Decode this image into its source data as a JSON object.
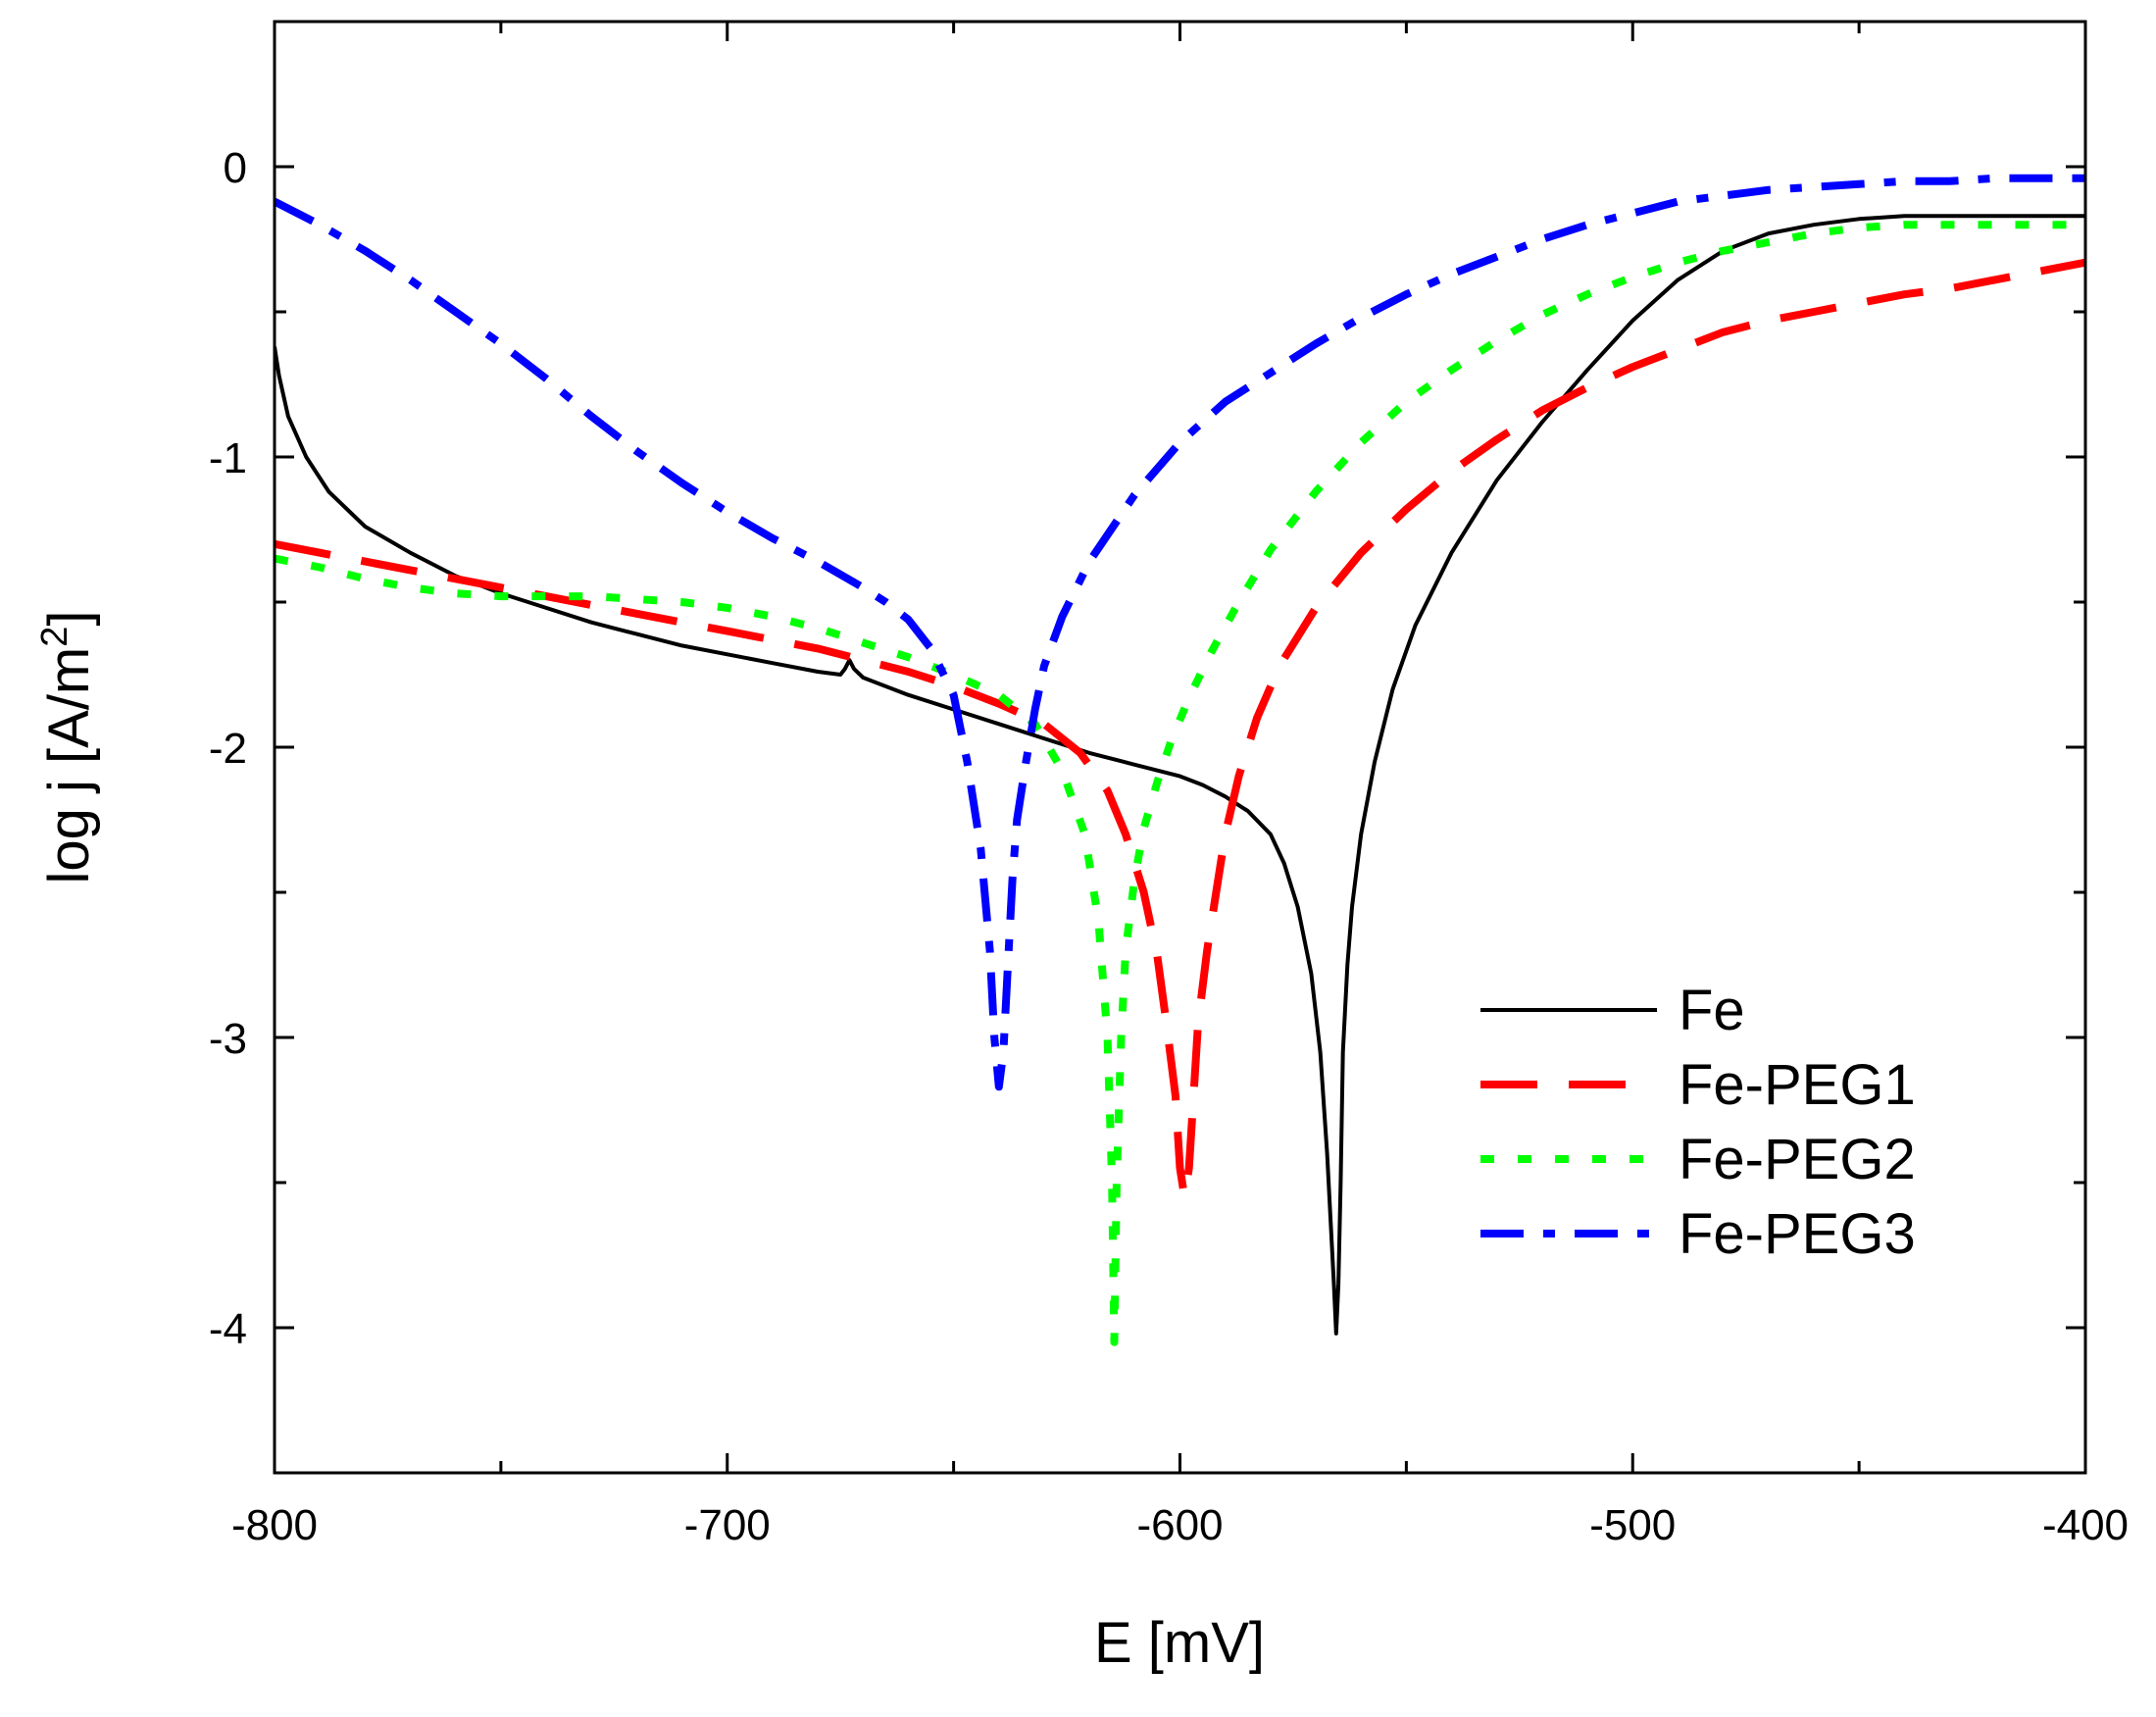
{
  "chart_data": {
    "type": "line",
    "title": "",
    "xlabel": "E [mV]",
    "ylabel": "log j [A/m",
    "ylabel_sup": "2",
    "ylabel_close": "]",
    "xlim": [
      -800,
      -400
    ],
    "ylim": [
      -4.5,
      0.5
    ],
    "xticks": [
      -800,
      -700,
      -600,
      -500,
      -400
    ],
    "xtick_labels": [
      "-800",
      "-700",
      "-600",
      "-500",
      "-400"
    ],
    "yticks": [
      0,
      -1,
      -2,
      -3,
      -4
    ],
    "ytick_labels": [
      "0",
      "-1",
      "-2",
      "-3",
      "-4"
    ],
    "grid": false,
    "legend_position": "bottom-right",
    "series": [
      {
        "name": "Fe",
        "color": "#000000",
        "style": "solid",
        "x": [
          -800,
          -799,
          -797,
          -793,
          -788,
          -780,
          -770,
          -760,
          -750,
          -740,
          -730,
          -720,
          -710,
          -700,
          -690,
          -680,
          -675,
          -674,
          -673,
          -672,
          -670,
          -660,
          -650,
          -640,
          -630,
          -620,
          -610,
          -600,
          -595,
          -590,
          -585,
          -580,
          -577,
          -574,
          -571,
          -569,
          -567.5,
          -566,
          -565.5,
          -565,
          -564.5,
          -564,
          -563,
          -562,
          -560,
          -557,
          -553,
          -548,
          -540,
          -530,
          -520,
          -510,
          -500,
          -490,
          -480,
          -470,
          -460,
          -450,
          -440,
          -430,
          -420,
          -410,
          -400
        ],
        "y": [
          -0.62,
          -0.72,
          -0.86,
          -1.0,
          -1.12,
          -1.24,
          -1.33,
          -1.41,
          -1.47,
          -1.52,
          -1.57,
          -1.61,
          -1.65,
          -1.68,
          -1.71,
          -1.74,
          -1.75,
          -1.73,
          -1.7,
          -1.73,
          -1.76,
          -1.82,
          -1.87,
          -1.92,
          -1.97,
          -2.02,
          -2.06,
          -2.1,
          -2.13,
          -2.17,
          -2.22,
          -2.3,
          -2.4,
          -2.55,
          -2.78,
          -3.05,
          -3.4,
          -3.85,
          -4.02,
          -3.85,
          -3.5,
          -3.05,
          -2.75,
          -2.55,
          -2.3,
          -2.05,
          -1.8,
          -1.58,
          -1.33,
          -1.08,
          -0.88,
          -0.7,
          -0.53,
          -0.39,
          -0.29,
          -0.23,
          -0.2,
          -0.18,
          -0.17,
          -0.17,
          -0.17,
          -0.17,
          -0.17
        ]
      },
      {
        "name": "Fe-PEG1",
        "color": "#ff0000",
        "style": "dashed",
        "x": [
          -800,
          -790,
          -780,
          -770,
          -760,
          -750,
          -740,
          -730,
          -720,
          -710,
          -700,
          -690,
          -680,
          -670,
          -660,
          -650,
          -640,
          -630,
          -622,
          -616,
          -612,
          -608,
          -605,
          -603,
          -601,
          -600,
          -599,
          -598,
          -597,
          -596,
          -594,
          -592,
          -590,
          -587,
          -583,
          -578,
          -570,
          -560,
          -550,
          -540,
          -530,
          -520,
          -510,
          -500,
          -490,
          -480,
          -470,
          -460,
          -450,
          -440,
          -430,
          -420,
          -410,
          -400
        ],
        "y": [
          -1.3,
          -1.33,
          -1.36,
          -1.39,
          -1.42,
          -1.45,
          -1.48,
          -1.51,
          -1.54,
          -1.57,
          -1.6,
          -1.63,
          -1.66,
          -1.7,
          -1.74,
          -1.79,
          -1.85,
          -1.92,
          -2.02,
          -2.15,
          -2.3,
          -2.5,
          -2.72,
          -2.95,
          -3.2,
          -3.45,
          -3.55,
          -3.45,
          -3.2,
          -2.95,
          -2.7,
          -2.5,
          -2.3,
          -2.1,
          -1.9,
          -1.72,
          -1.52,
          -1.33,
          -1.18,
          -1.05,
          -0.94,
          -0.84,
          -0.76,
          -0.69,
          -0.63,
          -0.57,
          -0.53,
          -0.5,
          -0.47,
          -0.44,
          -0.42,
          -0.39,
          -0.36,
          -0.33
        ]
      },
      {
        "name": "Fe-PEG2",
        "color": "#00ff00",
        "style": "dotted",
        "x": [
          -800,
          -790,
          -780,
          -770,
          -760,
          -750,
          -740,
          -730,
          -720,
          -710,
          -700,
          -690,
          -680,
          -670,
          -660,
          -650,
          -640,
          -632,
          -626,
          -621,
          -618,
          -616,
          -615,
          -614.5,
          -614,
          -613,
          -612,
          -610,
          -608,
          -605,
          -602,
          -598,
          -593,
          -587,
          -580,
          -570,
          -560,
          -550,
          -540,
          -530,
          -520,
          -510,
          -500,
          -490,
          -480,
          -470,
          -460,
          -450,
          -440,
          -430,
          -420,
          -410,
          -400
        ],
        "y": [
          -1.35,
          -1.38,
          -1.42,
          -1.45,
          -1.47,
          -1.48,
          -1.48,
          -1.48,
          -1.49,
          -1.5,
          -1.52,
          -1.55,
          -1.59,
          -1.64,
          -1.69,
          -1.75,
          -1.82,
          -1.92,
          -2.08,
          -2.3,
          -2.6,
          -3.0,
          -3.5,
          -4.05,
          -3.5,
          -3.0,
          -2.7,
          -2.45,
          -2.28,
          -2.12,
          -1.98,
          -1.83,
          -1.67,
          -1.5,
          -1.32,
          -1.12,
          -0.95,
          -0.81,
          -0.7,
          -0.6,
          -0.51,
          -0.44,
          -0.38,
          -0.33,
          -0.29,
          -0.26,
          -0.23,
          -0.21,
          -0.2,
          -0.2,
          -0.2,
          -0.2,
          -0.2
        ]
      },
      {
        "name": "Fe-PEG3",
        "color": "#0000ff",
        "style": "dashdot",
        "x": [
          -800,
          -790,
          -780,
          -770,
          -760,
          -750,
          -740,
          -730,
          -720,
          -710,
          -700,
          -690,
          -680,
          -670,
          -665,
          -660,
          -655,
          -650,
          -647,
          -644,
          -642,
          -641,
          -640,
          -639,
          -638,
          -637,
          -636,
          -634,
          -632,
          -630,
          -626,
          -620,
          -610,
          -600,
          -590,
          -580,
          -570,
          -560,
          -550,
          -540,
          -530,
          -520,
          -510,
          -500,
          -490,
          -480,
          -470,
          -460,
          -450,
          -440,
          -430,
          -420,
          -410,
          -400
        ],
        "y": [
          -0.12,
          -0.2,
          -0.29,
          -0.39,
          -0.5,
          -0.61,
          -0.73,
          -0.86,
          -0.98,
          -1.09,
          -1.19,
          -1.28,
          -1.36,
          -1.45,
          -1.5,
          -1.56,
          -1.66,
          -1.82,
          -2.05,
          -2.35,
          -2.7,
          -3.0,
          -3.17,
          -3.05,
          -2.75,
          -2.45,
          -2.25,
          -2.05,
          -1.87,
          -1.72,
          -1.55,
          -1.36,
          -1.13,
          -0.95,
          -0.81,
          -0.71,
          -0.61,
          -0.52,
          -0.44,
          -0.37,
          -0.31,
          -0.25,
          -0.2,
          -0.16,
          -0.12,
          -0.1,
          -0.08,
          -0.07,
          -0.06,
          -0.05,
          -0.05,
          -0.04,
          -0.04,
          -0.04
        ]
      }
    ]
  }
}
